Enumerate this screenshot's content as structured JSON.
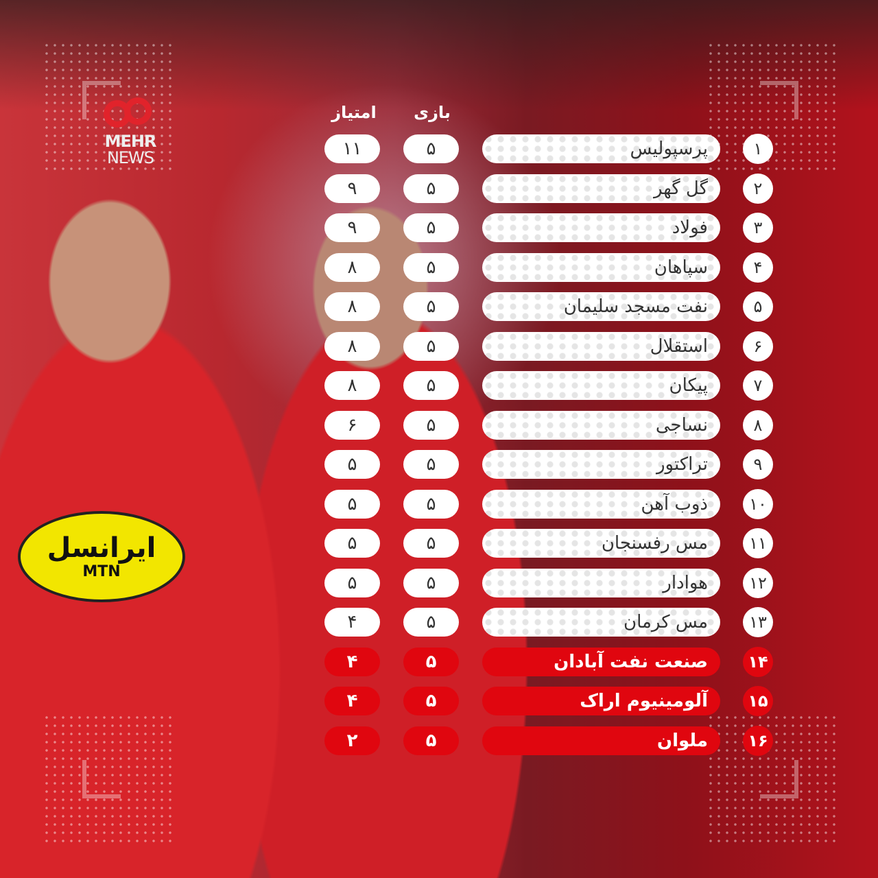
{
  "logo": {
    "brand_line1": "MEHR",
    "brand_line2": "NEWS"
  },
  "sponsor": {
    "text": "ایرانسل",
    "sub": "MTN"
  },
  "headers": {
    "games": "بازی",
    "points": "امتیاز"
  },
  "colors": {
    "relegation": "#e0060f",
    "normal_row": "#ffffff"
  },
  "standings": [
    {
      "rank": "۱",
      "team": "پرسپولیس",
      "games": "۵",
      "points": "۱۱",
      "relegation": false
    },
    {
      "rank": "۲",
      "team": "گل گهر",
      "games": "۵",
      "points": "۹",
      "relegation": false
    },
    {
      "rank": "۳",
      "team": "فولاد",
      "games": "۵",
      "points": "۹",
      "relegation": false
    },
    {
      "rank": "۴",
      "team": "سپاهان",
      "games": "۵",
      "points": "۸",
      "relegation": false
    },
    {
      "rank": "۵",
      "team": "نفت مسجد سلیمان",
      "games": "۵",
      "points": "۸",
      "relegation": false
    },
    {
      "rank": "۶",
      "team": "استقلال",
      "games": "۵",
      "points": "۸",
      "relegation": false
    },
    {
      "rank": "۷",
      "team": "پیکان",
      "games": "۵",
      "points": "۸",
      "relegation": false
    },
    {
      "rank": "۸",
      "team": "نساجی",
      "games": "۵",
      "points": "۶",
      "relegation": false
    },
    {
      "rank": "۹",
      "team": "تراکتور",
      "games": "۵",
      "points": "۵",
      "relegation": false
    },
    {
      "rank": "۱۰",
      "team": "ذوب آهن",
      "games": "۵",
      "points": "۵",
      "relegation": false
    },
    {
      "rank": "۱۱",
      "team": "مس رفسنجان",
      "games": "۵",
      "points": "۵",
      "relegation": false
    },
    {
      "rank": "۱۲",
      "team": "هوادار",
      "games": "۵",
      "points": "۵",
      "relegation": false
    },
    {
      "rank": "۱۳",
      "team": "مس کرمان",
      "games": "۵",
      "points": "۴",
      "relegation": false
    },
    {
      "rank": "۱۴",
      "team": "صنعت نفت آبادان",
      "games": "۵",
      "points": "۴",
      "relegation": true
    },
    {
      "rank": "۱۵",
      "team": "آلومینیوم اراک",
      "games": "۵",
      "points": "۴",
      "relegation": true
    },
    {
      "rank": "۱۶",
      "team": "ملوان",
      "games": "۵",
      "points": "۲",
      "relegation": true
    }
  ]
}
